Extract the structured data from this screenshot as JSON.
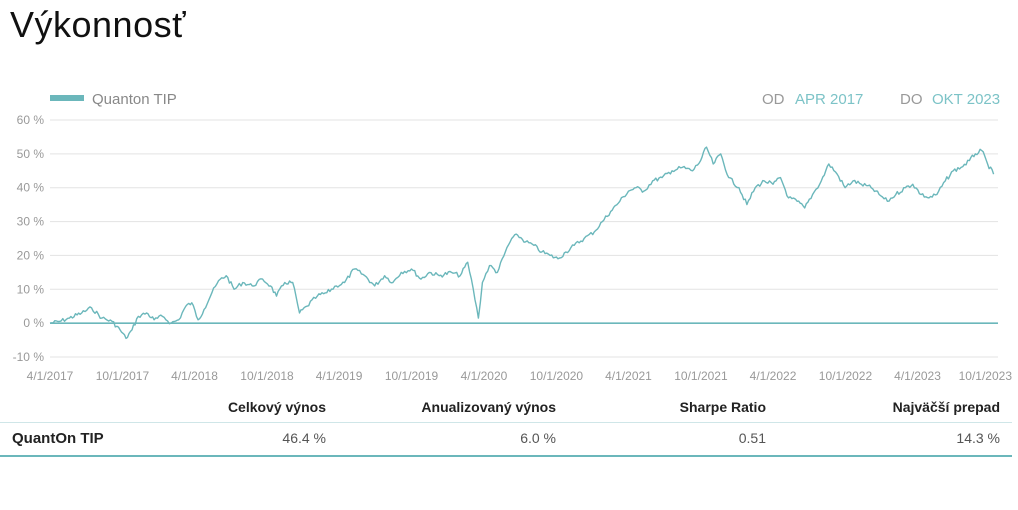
{
  "page": {
    "title": "Výkonnosť"
  },
  "legend": {
    "label": "Quanton TIP",
    "from_label": "OD",
    "from_value": "APR 2017",
    "to_label": "DO",
    "to_value": "OKT 2023"
  },
  "colors": {
    "series": "#6bb7bb",
    "range_value": "#7cc3c7",
    "grid": "#e3e3e3",
    "axis_text": "#999999"
  },
  "chart_data": {
    "type": "line",
    "xlabel": "",
    "ylabel": "",
    "ylim": [
      -10,
      60
    ],
    "xlim": [
      "2017-04-01",
      "2023-10-01"
    ],
    "grid": true,
    "legend_position": "top-left",
    "y_ticks": [
      "60 %",
      "50 %",
      "40 %",
      "30 %",
      "20 %",
      "10 %",
      "0 %",
      "-10 %"
    ],
    "y_tick_values": [
      60,
      50,
      40,
      30,
      20,
      10,
      0,
      -10
    ],
    "x_ticks": [
      "4/1/2017",
      "10/1/2017",
      "4/1/2018",
      "10/1/2018",
      "4/1/2019",
      "10/1/2019",
      "4/1/2020",
      "10/1/2020",
      "4/1/2021",
      "10/1/2021",
      "4/1/2022",
      "10/1/2022",
      "4/1/2023",
      "10/1/2023"
    ],
    "x_tick_dates": [
      "2017-04-01",
      "2017-10-01",
      "2018-04-01",
      "2018-10-01",
      "2019-04-01",
      "2019-10-01",
      "2020-04-01",
      "2020-10-01",
      "2021-04-01",
      "2021-10-01",
      "2022-04-01",
      "2022-10-01",
      "2023-04-01",
      "2023-10-01"
    ],
    "series": [
      {
        "name": "Quanton TIP",
        "points": [
          [
            "2017-04-01",
            0
          ],
          [
            "2017-04-25",
            0.5
          ],
          [
            "2017-05-20",
            1.5
          ],
          [
            "2017-06-20",
            3
          ],
          [
            "2017-07-15",
            4.5
          ],
          [
            "2017-08-10",
            1.5
          ],
          [
            "2017-09-05",
            0.5
          ],
          [
            "2017-09-25",
            -2
          ],
          [
            "2017-10-10",
            -4.5
          ],
          [
            "2017-10-25",
            -2
          ],
          [
            "2017-11-10",
            2
          ],
          [
            "2017-12-01",
            3
          ],
          [
            "2017-12-20",
            1
          ],
          [
            "2018-01-10",
            2
          ],
          [
            "2018-02-01",
            0
          ],
          [
            "2018-02-20",
            1
          ],
          [
            "2018-03-10",
            5
          ],
          [
            "2018-03-25",
            6
          ],
          [
            "2018-04-10",
            1
          ],
          [
            "2018-04-25",
            4
          ],
          [
            "2018-05-15",
            9
          ],
          [
            "2018-06-05",
            13
          ],
          [
            "2018-06-20",
            14
          ],
          [
            "2018-07-10",
            10
          ],
          [
            "2018-08-01",
            12
          ],
          [
            "2018-08-25",
            11
          ],
          [
            "2018-09-20",
            13
          ],
          [
            "2018-10-10",
            11
          ],
          [
            "2018-10-25",
            8
          ],
          [
            "2018-11-15",
            12
          ],
          [
            "2018-12-05",
            12
          ],
          [
            "2018-12-22",
            3
          ],
          [
            "2019-01-10",
            5
          ],
          [
            "2019-02-05",
            8
          ],
          [
            "2019-03-01",
            9
          ],
          [
            "2019-03-25",
            11
          ],
          [
            "2019-04-15",
            12
          ],
          [
            "2019-05-10",
            16
          ],
          [
            "2019-06-05",
            14
          ],
          [
            "2019-06-30",
            11
          ],
          [
            "2019-07-25",
            14
          ],
          [
            "2019-08-15",
            12
          ],
          [
            "2019-09-05",
            15
          ],
          [
            "2019-10-01",
            16
          ],
          [
            "2019-10-25",
            13
          ],
          [
            "2019-11-15",
            15
          ],
          [
            "2019-12-10",
            14
          ],
          [
            "2020-01-10",
            15
          ],
          [
            "2020-02-01",
            14
          ],
          [
            "2020-02-20",
            18
          ],
          [
            "2020-03-05",
            10
          ],
          [
            "2020-03-18",
            1.5
          ],
          [
            "2020-03-28",
            12
          ],
          [
            "2020-04-15",
            17
          ],
          [
            "2020-05-05",
            15
          ],
          [
            "2020-05-25",
            21
          ],
          [
            "2020-06-10",
            25
          ],
          [
            "2020-06-25",
            26
          ],
          [
            "2020-07-15",
            24
          ],
          [
            "2020-08-05",
            23
          ],
          [
            "2020-08-25",
            21
          ],
          [
            "2020-09-15",
            20
          ],
          [
            "2020-10-05",
            19
          ],
          [
            "2020-10-25",
            21
          ],
          [
            "2020-11-15",
            23
          ],
          [
            "2020-12-10",
            25
          ],
          [
            "2021-01-05",
            27
          ],
          [
            "2021-01-25",
            30
          ],
          [
            "2021-02-15",
            33
          ],
          [
            "2021-03-10",
            36
          ],
          [
            "2021-04-01",
            39
          ],
          [
            "2021-04-20",
            40
          ],
          [
            "2021-05-10",
            39
          ],
          [
            "2021-06-01",
            42
          ],
          [
            "2021-06-25",
            43
          ],
          [
            "2021-07-20",
            45
          ],
          [
            "2021-08-15",
            46
          ],
          [
            "2021-09-10",
            45
          ],
          [
            "2021-09-30",
            48
          ],
          [
            "2021-10-15",
            52
          ],
          [
            "2021-11-01",
            47
          ],
          [
            "2021-11-20",
            50
          ],
          [
            "2021-12-10",
            43
          ],
          [
            "2022-01-05",
            40
          ],
          [
            "2022-01-25",
            35
          ],
          [
            "2022-02-15",
            40
          ],
          [
            "2022-03-10",
            42
          ],
          [
            "2022-04-01",
            41
          ],
          [
            "2022-04-20",
            43
          ],
          [
            "2022-05-10",
            37
          ],
          [
            "2022-06-01",
            36
          ],
          [
            "2022-06-20",
            34
          ],
          [
            "2022-07-10",
            38
          ],
          [
            "2022-08-01",
            42
          ],
          [
            "2022-08-20",
            47
          ],
          [
            "2022-09-10",
            44
          ],
          [
            "2022-09-30",
            40
          ],
          [
            "2022-10-20",
            42
          ],
          [
            "2022-11-10",
            41
          ],
          [
            "2022-12-05",
            40
          ],
          [
            "2022-12-25",
            38
          ],
          [
            "2023-01-15",
            36
          ],
          [
            "2023-02-05",
            38
          ],
          [
            "2023-03-01",
            40
          ],
          [
            "2023-03-20",
            41
          ],
          [
            "2023-04-10",
            38
          ],
          [
            "2023-04-30",
            37
          ],
          [
            "2023-05-20",
            38
          ],
          [
            "2023-06-10",
            42
          ],
          [
            "2023-06-30",
            45
          ],
          [
            "2023-07-20",
            46
          ],
          [
            "2023-08-10",
            48
          ],
          [
            "2023-08-25",
            50
          ],
          [
            "2023-09-10",
            51
          ],
          [
            "2023-09-25",
            47
          ],
          [
            "2023-10-10",
            44
          ]
        ]
      }
    ]
  },
  "stats": {
    "headers": [
      "Celkový výnos",
      "Anualizovaný výnos",
      "Sharpe Ratio",
      "Najväčší prepad"
    ],
    "row": {
      "name": "QuantOn TIP",
      "values": [
        "46.4 %",
        "6.0 %",
        "0.51",
        "14.3 %"
      ]
    }
  }
}
